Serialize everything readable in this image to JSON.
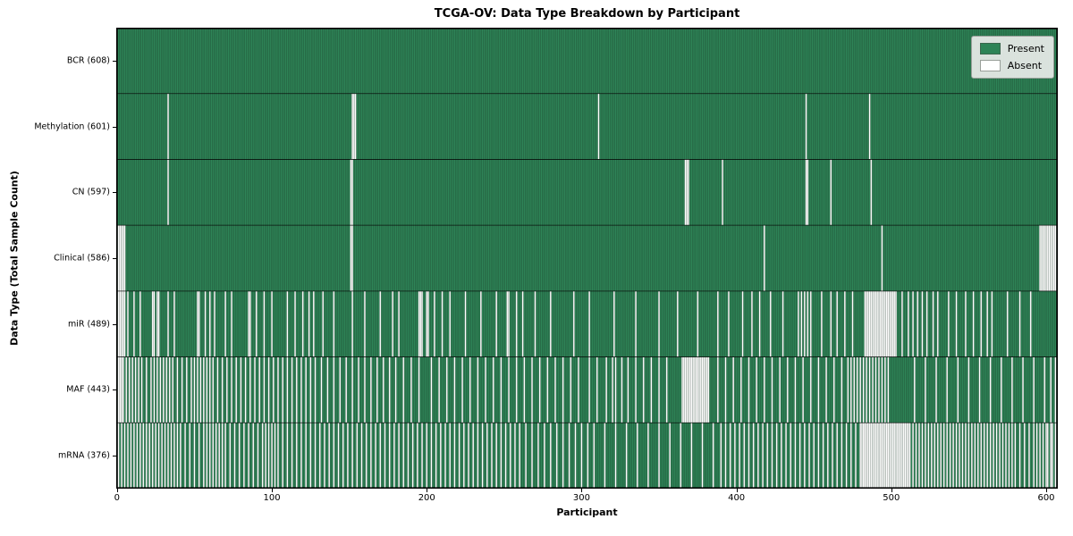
{
  "chart_data": {
    "type": "heatmap",
    "title": "TCGA-OV: Data Type Breakdown by Participant",
    "xlabel": "Participant",
    "ylabel": "Data Type (Total Sample Count)",
    "n_participants": 608,
    "xlim": [
      -0.5,
      607.5
    ],
    "xticks": [
      0,
      100,
      200,
      300,
      400,
      500,
      600
    ],
    "grid": false,
    "legend": {
      "position": "upper right",
      "entries": [
        {
          "label": "Present",
          "color": "#2e8457"
        },
        {
          "label": "Absent",
          "color": "#ffffff"
        }
      ]
    },
    "colors": {
      "present": "#2e8457",
      "absent": "#ffffff",
      "bar_edge": "rgba(18,28,20,0.5)",
      "row_divider": "rgba(0,0,0,0.85)",
      "spine": "#000000"
    },
    "rows": [
      {
        "name": "BCR",
        "label": "BCR (608)",
        "count": 608,
        "absent": []
      },
      {
        "name": "Methylation",
        "label": "Methylation (601)",
        "count": 601,
        "absent": [
          33,
          152,
          153,
          154,
          311,
          445,
          486
        ]
      },
      {
        "name": "CN",
        "label": "CN (597)",
        "count": 597,
        "absent": [
          33,
          151,
          152,
          367,
          368,
          369,
          391,
          445,
          446,
          461,
          487
        ]
      },
      {
        "name": "Clinical",
        "label": "Clinical (586)",
        "count": 586,
        "absent": [
          0,
          1,
          2,
          3,
          4,
          5,
          151,
          152,
          418,
          494,
          596,
          597,
          598,
          599,
          600,
          601,
          602,
          603,
          604,
          605,
          606,
          607
        ]
      },
      {
        "name": "miR",
        "label": "miR (489)",
        "count": 489,
        "absent": [
          0,
          1,
          2,
          3,
          4,
          5,
          7,
          11,
          15,
          23,
          24,
          26,
          27,
          33,
          37,
          52,
          53,
          57,
          60,
          63,
          70,
          74,
          85,
          86,
          90,
          95,
          100,
          110,
          115,
          120,
          124,
          127,
          133,
          140,
          152,
          160,
          170,
          178,
          182,
          195,
          196,
          197,
          200,
          201,
          205,
          210,
          215,
          225,
          235,
          245,
          252,
          253,
          258,
          262,
          270,
          280,
          295,
          305,
          321,
          335,
          350,
          362,
          375,
          388,
          395,
          404,
          410,
          415,
          422,
          430,
          440,
          442,
          444,
          446,
          448,
          455,
          461,
          465,
          470,
          475,
          483,
          484,
          485,
          486,
          487,
          488,
          489,
          490,
          491,
          492,
          493,
          494,
          495,
          496,
          497,
          498,
          499,
          500,
          501,
          502,
          503,
          507,
          511,
          514,
          517,
          520,
          523,
          527,
          530,
          537,
          542,
          548,
          553,
          558,
          562,
          565,
          575,
          583,
          590
        ]
      },
      {
        "name": "MAF",
        "label": "MAF (443)",
        "count": 443,
        "absent": [
          0,
          1,
          2,
          3,
          4,
          6,
          8,
          10,
          12,
          14,
          16,
          19,
          22,
          24,
          26,
          28,
          30,
          32,
          34,
          36,
          39,
          42,
          45,
          48,
          50,
          52,
          54,
          56,
          58,
          60,
          62,
          65,
          68,
          71,
          74,
          77,
          80,
          83,
          86,
          89,
          92,
          95,
          98,
          101,
          104,
          107,
          110,
          113,
          116,
          119,
          122,
          125,
          128,
          132,
          136,
          140,
          144,
          148,
          152,
          156,
          160,
          164,
          168,
          172,
          176,
          180,
          185,
          190,
          195,
          203,
          208,
          213,
          218,
          223,
          228,
          233,
          238,
          243,
          248,
          253,
          258,
          263,
          268,
          273,
          278,
          283,
          288,
          293,
          298,
          305,
          310,
          316,
          320,
          322,
          326,
          330,
          335,
          340,
          345,
          350,
          355,
          365,
          366,
          367,
          368,
          369,
          370,
          371,
          372,
          373,
          374,
          375,
          376,
          377,
          378,
          379,
          380,
          381,
          382,
          388,
          393,
          398,
          403,
          408,
          413,
          418,
          423,
          428,
          433,
          438,
          443,
          448,
          453,
          458,
          463,
          468,
          472,
          474,
          476,
          478,
          480,
          482,
          484,
          486,
          488,
          490,
          492,
          494,
          496,
          498,
          515,
          522,
          529,
          536,
          543,
          550,
          557,
          564,
          571,
          578,
          585,
          592,
          599,
          603,
          606
        ]
      },
      {
        "name": "mRNA",
        "label": "mRNA (376)",
        "count": 376,
        "absent": [
          0,
          1,
          3,
          5,
          7,
          9,
          11,
          13,
          15,
          17,
          19,
          21,
          23,
          25,
          27,
          29,
          31,
          33,
          35,
          37,
          39,
          41,
          44,
          47,
          50,
          53,
          56,
          58,
          60,
          62,
          64,
          66,
          68,
          70,
          73,
          76,
          79,
          82,
          85,
          88,
          91,
          94,
          96,
          98,
          100,
          102,
          104,
          107,
          110,
          113,
          116,
          119,
          122,
          125,
          128,
          131,
          134,
          137,
          140,
          143,
          146,
          149,
          152,
          155,
          158,
          161,
          164,
          167,
          170,
          173,
          176,
          179,
          182,
          185,
          188,
          191,
          194,
          197,
          200,
          203,
          206,
          209,
          212,
          215,
          218,
          221,
          224,
          227,
          230,
          233,
          236,
          239,
          242,
          245,
          248,
          251,
          254,
          257,
          260,
          264,
          268,
          272,
          276,
          280,
          284,
          288,
          292,
          296,
          300,
          304,
          308,
          315,
          322,
          329,
          336,
          343,
          350,
          357,
          364,
          371,
          378,
          385,
          390,
          393,
          396,
          399,
          402,
          405,
          408,
          411,
          414,
          417,
          420,
          423,
          426,
          429,
          432,
          435,
          438,
          441,
          444,
          447,
          450,
          453,
          456,
          459,
          462,
          465,
          468,
          471,
          474,
          477,
          480,
          481,
          482,
          483,
          484,
          485,
          486,
          487,
          488,
          489,
          490,
          491,
          492,
          493,
          494,
          495,
          496,
          497,
          498,
          499,
          500,
          501,
          502,
          503,
          504,
          505,
          506,
          507,
          508,
          509,
          510,
          511,
          512,
          514,
          516,
          518,
          520,
          522,
          524,
          526,
          528,
          530,
          532,
          534,
          536,
          538,
          540,
          542,
          544,
          546,
          548,
          550,
          552,
          554,
          556,
          558,
          560,
          562,
          564,
          566,
          568,
          570,
          572,
          574,
          576,
          578,
          580,
          583,
          586,
          589,
          592,
          594,
          596,
          598,
          600,
          601,
          603,
          604,
          606,
          607
        ]
      }
    ]
  }
}
